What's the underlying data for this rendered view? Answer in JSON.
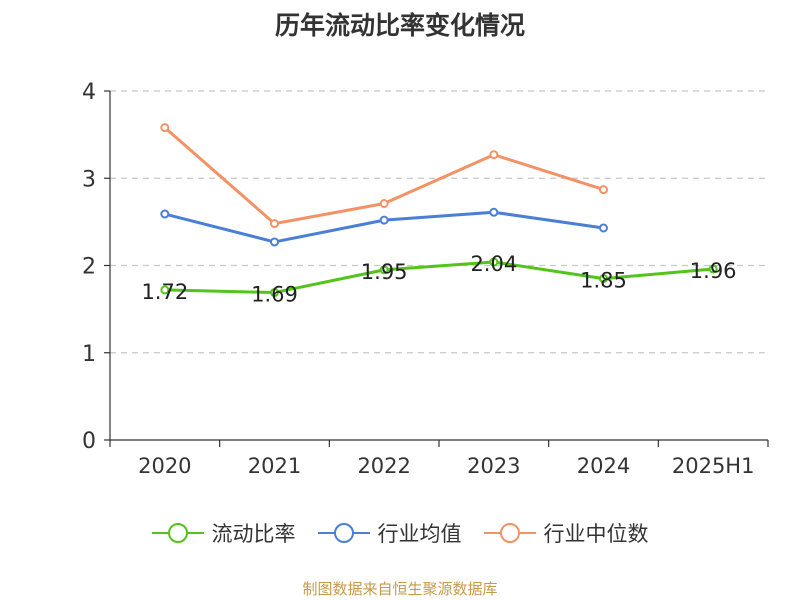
{
  "chart_data": {
    "type": "line",
    "title": "历年流动比率变化情况",
    "categories": [
      "2020",
      "2021",
      "2022",
      "2023",
      "2024",
      "2025H1"
    ],
    "ylim": [
      0,
      4
    ],
    "yticks": [
      0,
      1,
      2,
      3,
      4
    ],
    "grid": true,
    "legend_position": "bottom",
    "series": [
      {
        "name": "流动比率",
        "color": "#52c41a",
        "values": [
          1.72,
          1.69,
          1.95,
          2.04,
          1.85,
          1.96
        ],
        "labels": true
      },
      {
        "name": "行业均值",
        "color": "#4a7fd6",
        "values": [
          2.59,
          2.27,
          2.52,
          2.61,
          2.43,
          null
        ],
        "labels": false
      },
      {
        "name": "行业中位数",
        "color": "#f39264",
        "values": [
          3.58,
          2.48,
          2.71,
          3.27,
          2.87,
          null
        ],
        "labels": false
      }
    ]
  },
  "source": "制图数据来自恒生聚源数据库"
}
